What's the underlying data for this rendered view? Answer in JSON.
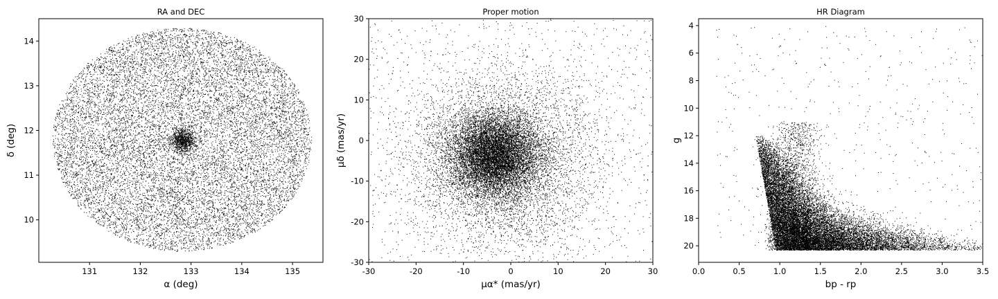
{
  "chart_data": [
    {
      "type": "scatter",
      "title": "RA and DEC",
      "xlabel": "α (deg)",
      "ylabel": "δ (deg)",
      "xlim": [
        130.0,
        135.6
      ],
      "ylim": [
        9.05,
        14.5
      ],
      "xticks": [
        131,
        132,
        133,
        134,
        135
      ],
      "yticks": [
        10,
        11,
        12,
        13,
        14
      ],
      "distribution": {
        "shape": "disk",
        "center": [
          132.82,
          11.8
        ],
        "radius_x": 2.55,
        "radius_y": 2.5,
        "dense_core": [
          132.85,
          11.78
        ],
        "point_count_estimate": 60000
      },
      "marker_color": "#000000",
      "grid": false
    },
    {
      "type": "scatter",
      "title": "Proper motion",
      "xlabel": "μα* (mas/yr)",
      "ylabel": "μδ (mas/yr)",
      "xlim": [
        -30,
        30
      ],
      "ylim": [
        -30,
        30
      ],
      "xticks": [
        -30,
        -20,
        -10,
        0,
        10,
        20,
        30
      ],
      "yticks": [
        -30,
        -20,
        -10,
        0,
        10,
        20,
        30
      ],
      "distribution": {
        "shape": "concentrated clump with broad halo",
        "clump_center": [
          -3.5,
          -3.5
        ],
        "clump_sigma": [
          4.5,
          5.0
        ],
        "halo_sigma": [
          10,
          11
        ],
        "point_count_estimate": 60000
      },
      "marker_color": "#000000",
      "grid": false
    },
    {
      "type": "scatter",
      "title": "HR Diagram",
      "xlabel": "bp - rp",
      "ylabel": "g",
      "xlim": [
        0.0,
        3.5
      ],
      "ylim": [
        21.2,
        3.5
      ],
      "y_inverted": true,
      "xticks": [
        0.0,
        0.5,
        1.0,
        1.5,
        2.0,
        2.5,
        3.0,
        3.5
      ],
      "yticks": [
        4,
        6,
        8,
        10,
        12,
        14,
        16,
        18,
        20
      ],
      "distribution": {
        "shape": "main sequence band plus magnitude-limited base",
        "faint_limit_g": 20.3,
        "blue_edge_bp_rp": 0.65,
        "red_clump_bp_rp": [
          1.1,
          1.25
        ],
        "dense_region": [
          [
            0.7,
            1.8
          ],
          [
            16,
            20.2
          ]
        ],
        "point_count_estimate": 60000
      },
      "marker_color": "#000000",
      "grid": false
    }
  ]
}
